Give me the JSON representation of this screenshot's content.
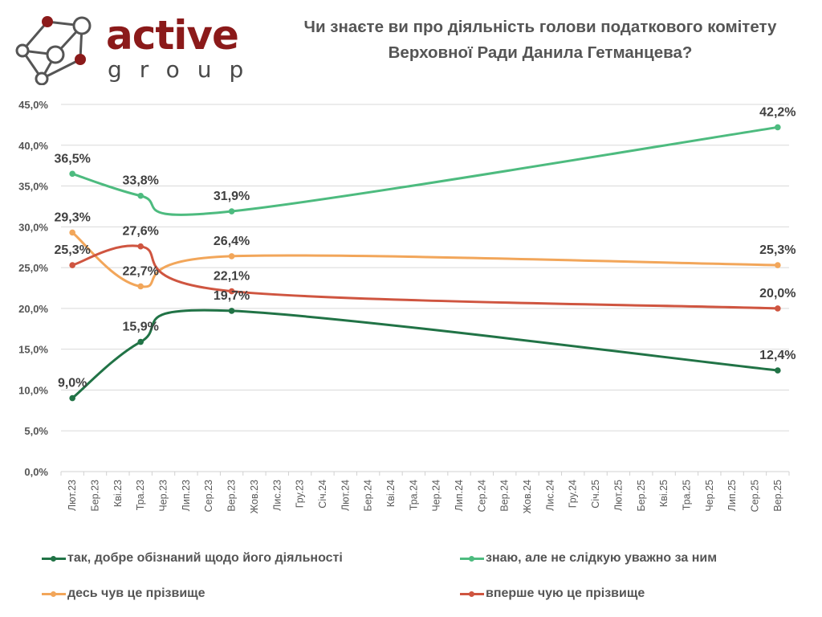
{
  "header": {
    "logo": {
      "brand": "active",
      "sub": "group",
      "brand_color": "#8b1a1a"
    },
    "title_line1": "Чи знаєте ви про діяльність голови податкового комітету",
    "title_line2": "Верховної Ради Данила Гетманцева?"
  },
  "chart_data": {
    "type": "line",
    "title": "Чи знаєте ви про діяльність голови податкового комітету Верховної Ради Данила Гетманцева?",
    "xlabel": "",
    "ylabel": "",
    "ylim": [
      0,
      45
    ],
    "yticks": [
      "0,0%",
      "5,0%",
      "10,0%",
      "15,0%",
      "20,0%",
      "25,0%",
      "30,0%",
      "35,0%",
      "40,0%",
      "45,0%"
    ],
    "ytick_values": [
      0,
      5,
      10,
      15,
      20,
      25,
      30,
      35,
      40,
      45
    ],
    "grid": true,
    "legend_position": "bottom",
    "categories": [
      "Лют.23",
      "Бер.23",
      "Кві.23",
      "Тра.23",
      "Чер.23",
      "Лип.23",
      "Сер.23",
      "Вер.23",
      "Жов.23",
      "Лис.23",
      "Гру.23",
      "Січ.24",
      "Лют.24",
      "Бер.24",
      "Кві.24",
      "Тра.24",
      "Чер.24",
      "Лип.24",
      "Сер.24",
      "Вер.24",
      "Жов.24",
      "Лис.24",
      "Гру.24",
      "Січ.25",
      "Лют.25",
      "Бер.25",
      "Кві.25",
      "Тра.25",
      "Чер.25",
      "Лип.25",
      "Сер.25",
      "Вер.25"
    ],
    "series": [
      {
        "name": "так, добре обізнаний щодо його діяльності",
        "color": "#217346",
        "points": [
          {
            "x": "Лют.23",
            "y": 9.0,
            "label": "9,0%"
          },
          {
            "x": "Тра.23",
            "y": 15.9,
            "label": "15,9%"
          },
          {
            "x": "Вер.23",
            "y": 19.7,
            "label": "19,7%"
          },
          {
            "x": "Вер.25",
            "y": 12.4,
            "label": "12,4%"
          }
        ]
      },
      {
        "name": "знаю, але не слідкую уважно за ним",
        "color": "#4dbb7f",
        "points": [
          {
            "x": "Лют.23",
            "y": 36.5,
            "label": "36,5%"
          },
          {
            "x": "Тра.23",
            "y": 33.8,
            "label": "33,8%"
          },
          {
            "x": "Вер.23",
            "y": 31.9,
            "label": "31,9%"
          },
          {
            "x": "Вер.25",
            "y": 42.2,
            "label": "42,2%"
          }
        ]
      },
      {
        "name": "десь чув це прізвище",
        "color": "#f2a65a",
        "points": [
          {
            "x": "Лют.23",
            "y": 29.3,
            "label": "29,3%"
          },
          {
            "x": "Тра.23",
            "y": 22.7,
            "label": "22,7%"
          },
          {
            "x": "Вер.23",
            "y": 26.4,
            "label": "26,4%"
          },
          {
            "x": "Вер.25",
            "y": 25.3,
            "label": "25,3%"
          }
        ]
      },
      {
        "name": "вперше чую це прізвище",
        "color": "#cf5540",
        "points": [
          {
            "x": "Лют.23",
            "y": 25.3,
            "label": "25,3%"
          },
          {
            "x": "Тра.23",
            "y": 27.6,
            "label": "27,6%"
          },
          {
            "x": "Вер.23",
            "y": 22.1,
            "label": "22,1%"
          },
          {
            "x": "Вер.25",
            "y": 20.0,
            "label": "20,0%"
          }
        ]
      }
    ]
  },
  "legend": [
    {
      "label": "так, добре обізнаний щодо його діяльності",
      "color": "#217346"
    },
    {
      "label": "знаю, але не слідкую уважно за ним",
      "color": "#4dbb7f"
    },
    {
      "label": "десь чув це прізвище",
      "color": "#f2a65a"
    },
    {
      "label": "вперше чую це прізвище",
      "color": "#cf5540"
    }
  ]
}
